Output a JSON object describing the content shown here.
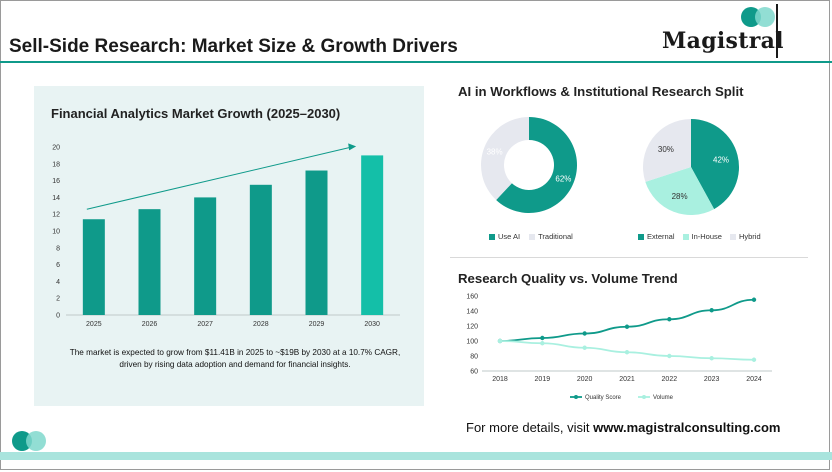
{
  "header": {
    "title": "Sell-Side Research: Market Size & Growth Drivers",
    "brand": "Magistral"
  },
  "left_panel": {
    "caption": "The market is expected to grow from $11.41B in 2025 to ~$19B by 2030 at a 10.7% CAGR, driven by rising data adoption and demand for financial insights."
  },
  "right_panel": {
    "donut_legend": [
      "Use AI",
      "Traditional"
    ],
    "pie_legend": [
      "External",
      "In-House",
      "Hybrid"
    ]
  },
  "footer": {
    "prefix": "For more details, visit ",
    "url": "www.magistralconsulting.com"
  },
  "colors": {
    "teal": "#0f9a8a",
    "teal_bright": "#14bfa8",
    "mint": "#a9f0e0",
    "grey": "#e6e8ef"
  },
  "chart_data": [
    {
      "type": "bar",
      "title": "Financial Analytics Market Growth (2025–2030)",
      "categories": [
        "2025",
        "2026",
        "2027",
        "2028",
        "2029",
        "2030"
      ],
      "values": [
        11.4,
        12.6,
        14.0,
        15.5,
        17.2,
        19.0
      ],
      "ylim": [
        0,
        20
      ],
      "yticks": [
        0,
        2,
        4,
        6,
        8,
        10,
        12,
        14,
        16,
        18,
        20
      ],
      "trend_arrow": true,
      "grid": false
    },
    {
      "type": "pie",
      "variant": "donut",
      "title": "AI in Workflows  &  Institutional Research Split",
      "labels": [
        "Use AI",
        "Traditional"
      ],
      "values": [
        62,
        38
      ],
      "value_labels": [
        "62%",
        "38%"
      ]
    },
    {
      "type": "pie",
      "labels": [
        "External",
        "In-House",
        "Hybrid"
      ],
      "values": [
        42,
        28,
        30
      ],
      "value_labels": [
        "42%",
        "28%",
        "30%"
      ]
    },
    {
      "type": "line",
      "title": "Research Quality vs. Volume Trend",
      "x": [
        "2018",
        "2019",
        "2020",
        "2021",
        "2022",
        "2023",
        "2024"
      ],
      "series": [
        {
          "name": "Quality Score",
          "values": [
            100,
            104,
            110,
            119,
            129,
            141,
            155
          ]
        },
        {
          "name": "Volume",
          "values": [
            100,
            97,
            91,
            85,
            80,
            77,
            75
          ]
        }
      ],
      "ylim": [
        60,
        160
      ],
      "yticks": [
        60,
        70,
        80,
        90,
        100,
        110,
        120,
        130,
        140,
        150,
        160
      ],
      "legend": "bottom",
      "grid": false
    }
  ]
}
